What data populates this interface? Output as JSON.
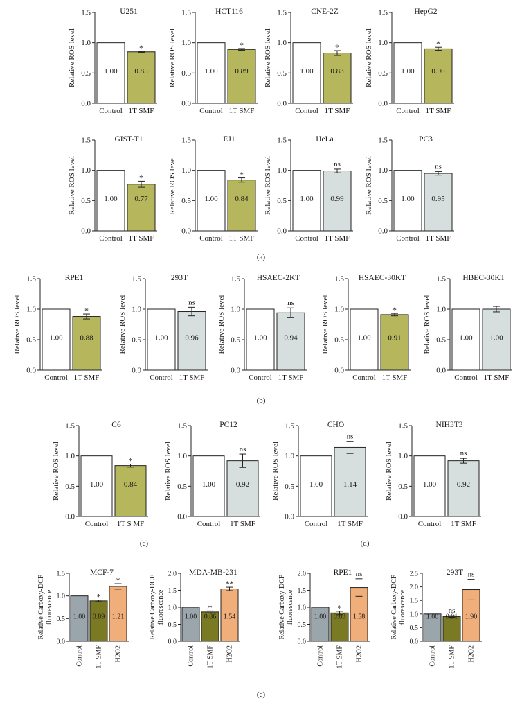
{
  "colors": {
    "control_white": "#ffffff",
    "green": "#b6b75d",
    "grey_light": "#d7dfde",
    "control_grey": "#9aa6ab",
    "olive": "#7b7a24",
    "orange": "#f0ae7a"
  },
  "panel_labels": {
    "a": "(a)",
    "b": "(b)",
    "c": "(c)",
    "d": "(d)",
    "e": "(e)"
  },
  "chart_data": [
    {
      "id": "U251",
      "type": "bar",
      "title": "U251",
      "ylabel": "Relative ROS level",
      "ylim": [
        0,
        1.5
      ],
      "yticks": [
        "0.0",
        "0.5",
        "1.0",
        "1.5"
      ],
      "categories": [
        "Control",
        "1T SMF"
      ],
      "values": [
        1.0,
        0.85
      ],
      "value_labels": [
        "1.00",
        "0.85"
      ],
      "errors": [
        0,
        0.01
      ],
      "sig": [
        "",
        "*"
      ],
      "colors": [
        "control_white",
        "green"
      ]
    },
    {
      "id": "HCT116",
      "type": "bar",
      "title": "HCT116",
      "ylabel": "Relative ROS level",
      "ylim": [
        0,
        1.5
      ],
      "yticks": [
        "0.0",
        "0.5",
        "1.0",
        "1.5"
      ],
      "categories": [
        "Control",
        "1T SMF"
      ],
      "values": [
        1.0,
        0.89
      ],
      "value_labels": [
        "1.00",
        "0.89"
      ],
      "errors": [
        0,
        0.015
      ],
      "sig": [
        "",
        "*"
      ],
      "colors": [
        "control_white",
        "green"
      ]
    },
    {
      "id": "CNE-2Z",
      "type": "bar",
      "title": "CNE-2Z",
      "ylabel": "Relative ROS level",
      "ylim": [
        0,
        1.5
      ],
      "yticks": [
        "0.0",
        "0.5",
        "1.0",
        "1.5"
      ],
      "categories": [
        "Control",
        "1T SMF"
      ],
      "values": [
        1.0,
        0.83
      ],
      "value_labels": [
        "1.00",
        "0.83"
      ],
      "errors": [
        0,
        0.04
      ],
      "sig": [
        "",
        "*"
      ],
      "colors": [
        "control_white",
        "green"
      ]
    },
    {
      "id": "HepG2",
      "type": "bar",
      "title": "HepG2",
      "ylabel": "Relative ROS level",
      "ylim": [
        0,
        1.5
      ],
      "yticks": [
        "0.0",
        "0.5",
        "1.0",
        "1.5"
      ],
      "categories": [
        "Control",
        "1T SMF"
      ],
      "values": [
        1.0,
        0.9
      ],
      "value_labels": [
        "1.00",
        "0.90"
      ],
      "errors": [
        0,
        0.025
      ],
      "sig": [
        "",
        "*"
      ],
      "colors": [
        "control_white",
        "green"
      ]
    },
    {
      "id": "GIST-T1",
      "type": "bar",
      "title": "GIST-T1",
      "ylabel": "Relative ROS level",
      "ylim": [
        0,
        1.5
      ],
      "yticks": [
        "0.0",
        "0.5",
        "1.0",
        "1.5"
      ],
      "categories": [
        "Control",
        "1T SMF"
      ],
      "values": [
        1.0,
        0.77
      ],
      "value_labels": [
        "1.00",
        "0.77"
      ],
      "errors": [
        0,
        0.05
      ],
      "sig": [
        "",
        "*"
      ],
      "colors": [
        "control_white",
        "green"
      ]
    },
    {
      "id": "EJ1",
      "type": "bar",
      "title": "EJ1",
      "ylabel": "Relative ROS level",
      "ylim": [
        0,
        1.5
      ],
      "yticks": [
        "0.0",
        "0.5",
        "1.0",
        "1.5"
      ],
      "categories": [
        "Control",
        "1T SMF"
      ],
      "values": [
        1.0,
        0.84
      ],
      "value_labels": [
        "1.00",
        "0.84"
      ],
      "errors": [
        0,
        0.035
      ],
      "sig": [
        "",
        "*"
      ],
      "colors": [
        "control_white",
        "green"
      ]
    },
    {
      "id": "HeLa",
      "type": "bar",
      "title": "HeLa",
      "ylabel": "Relative ROS level",
      "ylim": [
        0,
        1.5
      ],
      "yticks": [
        "0.0",
        "0.5",
        "1.0",
        "1.5"
      ],
      "categories": [
        "Control",
        "1T SMF"
      ],
      "values": [
        1.0,
        0.99
      ],
      "value_labels": [
        "1.00",
        "0.99"
      ],
      "errors": [
        0,
        0.03
      ],
      "sig": [
        "",
        "ns"
      ],
      "colors": [
        "control_white",
        "grey_light"
      ]
    },
    {
      "id": "PC3",
      "type": "bar",
      "title": "PC3",
      "ylabel": "Relative ROS level",
      "ylim": [
        0,
        1.5
      ],
      "yticks": [
        "0.0",
        "0.5",
        "1.0",
        "1.5"
      ],
      "categories": [
        "Control",
        "1T SMF"
      ],
      "values": [
        1.0,
        0.95
      ],
      "value_labels": [
        "1.00",
        "0.95"
      ],
      "errors": [
        0,
        0.03
      ],
      "sig": [
        "",
        "ns"
      ],
      "colors": [
        "control_white",
        "grey_light"
      ]
    },
    {
      "id": "RPE1",
      "type": "bar",
      "title": "RPE1",
      "ylabel": "Relative ROS level",
      "ylim": [
        0,
        1.5
      ],
      "yticks": [
        "0.0",
        "0.5",
        "1.0",
        "1.5"
      ],
      "categories": [
        "Control",
        "1T SMF"
      ],
      "values": [
        1.0,
        0.88
      ],
      "value_labels": [
        "1.00",
        "0.88"
      ],
      "errors": [
        0,
        0.04
      ],
      "sig": [
        "",
        "*"
      ],
      "colors": [
        "control_white",
        "green"
      ]
    },
    {
      "id": "293T",
      "type": "bar",
      "title": "293T",
      "ylabel": "Relative ROS level",
      "ylim": [
        0,
        1.5
      ],
      "yticks": [
        "0.0",
        "0.5",
        "1.0",
        "1.5"
      ],
      "categories": [
        "Control",
        "1T SMF"
      ],
      "values": [
        1.0,
        0.96
      ],
      "value_labels": [
        "1.00",
        "0.96"
      ],
      "errors": [
        0,
        0.07
      ],
      "sig": [
        "",
        "ns"
      ],
      "colors": [
        "control_white",
        "grey_light"
      ]
    },
    {
      "id": "HSAEC-2KT",
      "type": "bar",
      "title": "HSAEC-2KT",
      "ylabel": "Relative ROS level",
      "ylim": [
        0,
        1.5
      ],
      "yticks": [
        "0.0",
        "0.5",
        "1.0",
        "1.5"
      ],
      "categories": [
        "Control",
        "1T SMF"
      ],
      "values": [
        1.0,
        0.94
      ],
      "value_labels": [
        "1.00",
        "0.94"
      ],
      "errors": [
        0,
        0.08
      ],
      "sig": [
        "",
        "ns"
      ],
      "colors": [
        "control_white",
        "grey_light"
      ]
    },
    {
      "id": "HSAEC-30KT",
      "type": "bar",
      "title": "HSAEC-30KT",
      "ylabel": "Relative ROS level",
      "ylim": [
        0,
        1.5
      ],
      "yticks": [
        "0.0",
        "0.5",
        "1.0",
        "1.5"
      ],
      "categories": [
        "Control",
        "1T SMF"
      ],
      "values": [
        1.0,
        0.91
      ],
      "value_labels": [
        "1.00",
        "0.91"
      ],
      "errors": [
        0,
        0.02
      ],
      "sig": [
        "",
        "*"
      ],
      "colors": [
        "control_white",
        "green"
      ]
    },
    {
      "id": "HBEC-30KT",
      "type": "bar",
      "title": "HBEC-30KT",
      "ylabel": "Relative ROS level",
      "ylim": [
        0,
        1.5
      ],
      "yticks": [
        "0.0",
        "0.5",
        "1.0",
        "1.5"
      ],
      "categories": [
        "Control",
        "1T SMF"
      ],
      "values": [
        1.0,
        1.0
      ],
      "value_labels": [
        "1.00",
        "1.00"
      ],
      "errors": [
        0,
        0.045
      ],
      "sig": [
        "",
        ""
      ],
      "colors": [
        "control_white",
        "grey_light"
      ]
    },
    {
      "id": "C6",
      "type": "bar",
      "title": "C6",
      "ylabel": "Relative ROS level",
      "ylim": [
        0,
        1.5
      ],
      "yticks": [
        "0.0",
        "0.5",
        "1.0",
        "1.5"
      ],
      "categories": [
        "Control",
        "1T S MF"
      ],
      "values": [
        1.0,
        0.84
      ],
      "value_labels": [
        "1.00",
        "0.84"
      ],
      "errors": [
        0,
        0.025
      ],
      "sig": [
        "",
        "*"
      ],
      "colors": [
        "control_white",
        "green"
      ]
    },
    {
      "id": "PC12",
      "type": "bar",
      "title": "PC12",
      "ylabel": "Relative ROS level",
      "ylim": [
        0,
        1.5
      ],
      "yticks": [
        "0.0",
        "0.5",
        "1.0",
        "1.5"
      ],
      "categories": [
        "Control",
        "1T SMF"
      ],
      "values": [
        1.0,
        0.92
      ],
      "value_labels": [
        "1.00",
        "0.92"
      ],
      "errors": [
        0,
        0.11
      ],
      "sig": [
        "",
        "ns"
      ],
      "colors": [
        "control_white",
        "grey_light"
      ]
    },
    {
      "id": "CHO",
      "type": "bar",
      "title": "CHO",
      "ylabel": "Relative ROS level",
      "ylim": [
        0,
        1.5
      ],
      "yticks": [
        "0.0",
        "0.5",
        "1.0",
        "1.5"
      ],
      "categories": [
        "Control",
        "1T SMF"
      ],
      "values": [
        1.0,
        1.14
      ],
      "value_labels": [
        "1.00",
        "1.14"
      ],
      "errors": [
        0,
        0.1
      ],
      "sig": [
        "",
        "ns"
      ],
      "colors": [
        "control_white",
        "grey_light"
      ]
    },
    {
      "id": "NIH3T3",
      "type": "bar",
      "title": "NIH3T3",
      "ylabel": "Relative ROS level",
      "ylim": [
        0,
        1.5
      ],
      "yticks": [
        "0.0",
        "0.5",
        "1.0",
        "1.5"
      ],
      "categories": [
        "Control",
        "1T SMF"
      ],
      "values": [
        1.0,
        0.92
      ],
      "value_labels": [
        "1.00",
        "0.92"
      ],
      "errors": [
        0,
        0.04
      ],
      "sig": [
        "",
        "ns"
      ],
      "colors": [
        "control_white",
        "grey_light"
      ]
    },
    {
      "id": "MCF-7",
      "type": "bar",
      "title": "MCF-7",
      "ylabel": [
        "Relative Carboxy-DCF",
        "fluorescence"
      ],
      "ylim": [
        0,
        1.5
      ],
      "yticks": [
        "0.0",
        "0.5",
        "1.0",
        "1.5"
      ],
      "categories": [
        "Control",
        "1T SMF",
        "H2O2"
      ],
      "values": [
        1.0,
        0.89,
        1.21
      ],
      "value_labels": [
        "1.00",
        "0.89",
        "1.21"
      ],
      "errors": [
        0,
        0.02,
        0.06
      ],
      "sig": [
        "",
        "*",
        "*"
      ],
      "colors": [
        "control_grey",
        "olive",
        "orange"
      ]
    },
    {
      "id": "MDA-MB-231",
      "type": "bar",
      "title": "MDA-MB-231",
      "ylabel": [
        "Relative Carboxy-DCF",
        "fluorescence"
      ],
      "ylim": [
        0,
        2.0
      ],
      "yticks": [
        "0.0",
        "0.5",
        "1.0",
        "1.5",
        "2.0"
      ],
      "categories": [
        "Control",
        "1T SMF",
        "H2O2"
      ],
      "values": [
        1.0,
        0.86,
        1.54
      ],
      "value_labels": [
        "1.00",
        "0.86",
        "1.54"
      ],
      "errors": [
        0,
        0.03,
        0.05
      ],
      "sig": [
        "",
        "*",
        "**"
      ],
      "colors": [
        "control_grey",
        "olive",
        "orange"
      ]
    },
    {
      "id": "RPE1-e",
      "type": "bar",
      "title": "RPE1",
      "ylabel": [
        "Relative Carboxy-DCF",
        "fluorescence"
      ],
      "ylim": [
        0,
        2.0
      ],
      "yticks": [
        "0.0",
        "0.5",
        "1.0",
        "1.5",
        "2.0"
      ],
      "categories": [
        "Control",
        "1T SMF",
        "H2O2"
      ],
      "values": [
        1.0,
        0.83,
        1.58
      ],
      "value_labels": [
        "1.00",
        "0.83",
        "1.58"
      ],
      "errors": [
        0,
        0.05,
        0.26
      ],
      "sig": [
        "",
        "*",
        "ns"
      ],
      "colors": [
        "control_grey",
        "olive",
        "orange"
      ]
    },
    {
      "id": "293T-e",
      "type": "bar",
      "title": "293T",
      "ylabel": [
        "Relative Carboxy-DCF",
        "fluorescence"
      ],
      "ylim": [
        0,
        2.5
      ],
      "yticks": [
        "0.0",
        "0.5",
        "1.0",
        "1.5",
        "2.0",
        "2.5"
      ],
      "categories": [
        "Control",
        "1T SMF",
        "H2O2"
      ],
      "values": [
        1.0,
        0.91,
        1.9
      ],
      "value_labels": [
        "1.00",
        "0.91",
        "1.90"
      ],
      "errors": [
        0,
        0.03,
        0.38
      ],
      "sig": [
        "",
        "ns",
        "ns"
      ],
      "colors": [
        "control_grey",
        "olive",
        "orange"
      ]
    }
  ]
}
